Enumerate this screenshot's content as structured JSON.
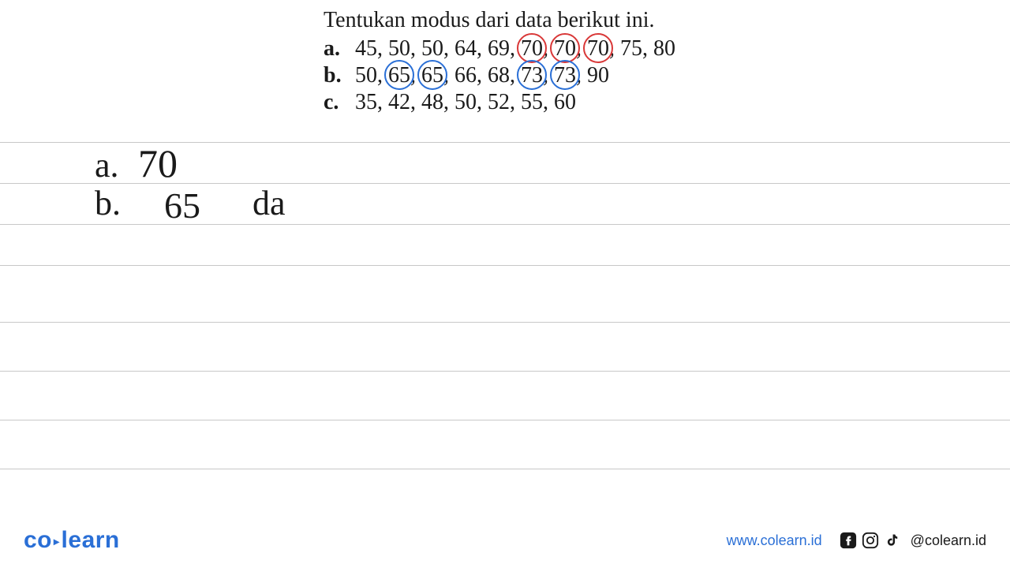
{
  "question": {
    "title": "Tentukan modus dari data berikut ini.",
    "items": [
      {
        "label": "a.",
        "values": [
          45,
          50,
          50,
          64,
          69,
          70,
          70,
          70,
          75,
          80
        ],
        "circled_indices": [
          5,
          6,
          7
        ],
        "circle_color": "#d93838"
      },
      {
        "label": "b.",
        "values": [
          50,
          65,
          65,
          66,
          68,
          73,
          73,
          90
        ],
        "circled_indices": [
          1,
          2,
          5,
          6
        ],
        "circle_color": "#2a6fd6"
      },
      {
        "label": "c.",
        "values": [
          35,
          42,
          48,
          50,
          52,
          55,
          60
        ],
        "circled_indices": [],
        "circle_color": null
      }
    ]
  },
  "handwritten": {
    "a": {
      "label": "a.",
      "value": "70"
    },
    "b": {
      "label": "b.",
      "value": "65",
      "extra": "da"
    }
  },
  "lines": {
    "count": 8,
    "start_top": 0,
    "spacing": 52,
    "color": "#c8c8c8"
  },
  "footer": {
    "logo_co": "co",
    "logo_learn": "learn",
    "logo_color": "#2a6fd6",
    "url": "www.colearn.id",
    "handle": "@colearn.id",
    "icon_color": "#1a1a1a"
  },
  "colors": {
    "red": "#d93838",
    "blue": "#2a6fd6",
    "text": "#1a1a1a",
    "bg": "#ffffff"
  }
}
